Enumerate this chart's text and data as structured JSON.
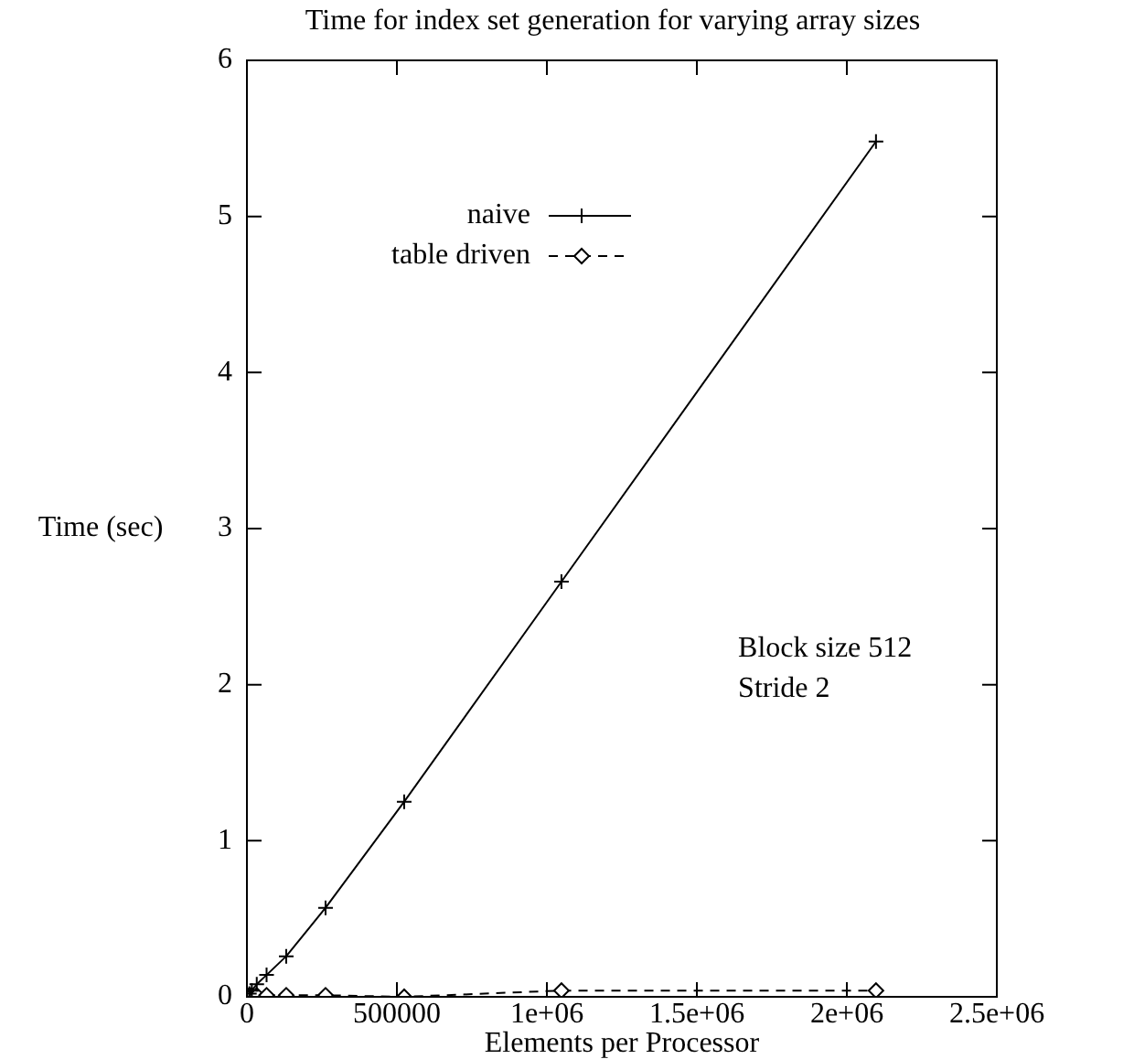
{
  "chart_data": {
    "type": "line",
    "title": "Time for index set generation for varying array sizes",
    "xlabel": "Elements per Processor",
    "ylabel": "Time (sec)",
    "x": [
      8192,
      16384,
      32768,
      65536,
      131072,
      262144,
      524288,
      1048576,
      2097152
    ],
    "series": [
      {
        "name": "naive",
        "color": "#000000",
        "marker": "cross",
        "line_style": "solid",
        "values": [
          0.02,
          0.04,
          0.08,
          0.14,
          0.26,
          0.57,
          1.25,
          2.66,
          5.48
        ]
      },
      {
        "name": "table driven",
        "color": "#000000",
        "marker": "diamond",
        "line_style": "dashed",
        "values": [
          0.01,
          0.01,
          0.01,
          0.01,
          0.01,
          0.01,
          0.0,
          0.04,
          0.04
        ]
      }
    ],
    "xlim": [
      0,
      2500000
    ],
    "xticks": [
      {
        "value": 0,
        "label": "0"
      },
      {
        "value": 500000,
        "label": "500000"
      },
      {
        "value": 1000000,
        "label": "1e+06"
      },
      {
        "value": 1500000,
        "label": "1.5e+06"
      },
      {
        "value": 2000000,
        "label": "2e+06"
      },
      {
        "value": 2500000,
        "label": "2.5e+06"
      }
    ],
    "ylim": [
      0,
      6
    ],
    "yticks": [
      0,
      1,
      2,
      3,
      4,
      5,
      6
    ],
    "legend": "top left",
    "annotations": [
      "Block size 512",
      "Stride 2"
    ]
  }
}
